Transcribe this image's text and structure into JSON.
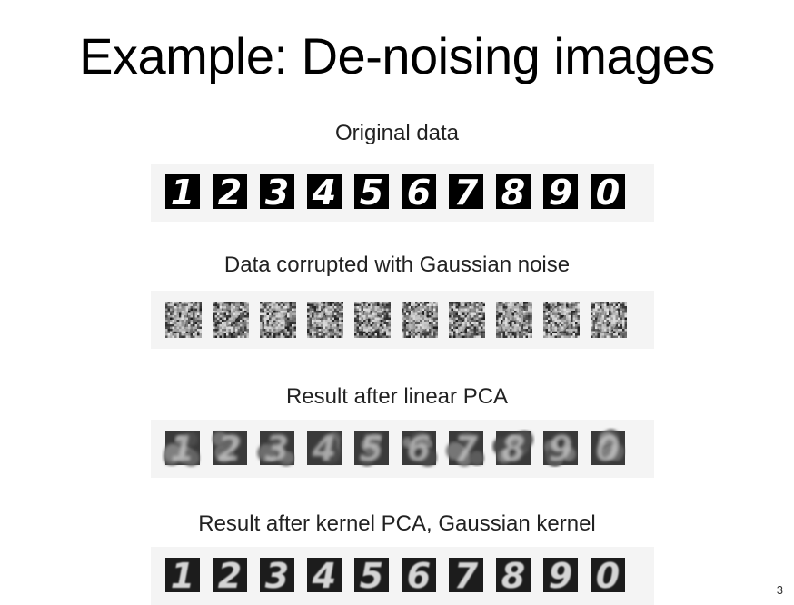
{
  "slide": {
    "title": "Example: De-noising images",
    "page_number": "3"
  },
  "sections": [
    {
      "caption": "Original data",
      "variant": "original",
      "digits": [
        "1",
        "2",
        "3",
        "4",
        "5",
        "6",
        "7",
        "8",
        "9",
        "0"
      ]
    },
    {
      "caption": "Data corrupted with Gaussian noise",
      "variant": "noisy",
      "digits": [
        "1",
        "2",
        "3",
        "4",
        "5",
        "6",
        "7",
        "8",
        "9",
        "0"
      ]
    },
    {
      "caption": "Result after linear PCA",
      "variant": "linear-pca",
      "digits": [
        "1",
        "2",
        "3",
        "4",
        "5",
        "6",
        "7",
        "8",
        "9",
        "0"
      ]
    },
    {
      "caption": "Result after kernel PCA, Gaussian kernel",
      "variant": "kernel-pca",
      "digits": [
        "1",
        "2",
        "3",
        "4",
        "5",
        "6",
        "7",
        "8",
        "9",
        "0"
      ]
    }
  ]
}
